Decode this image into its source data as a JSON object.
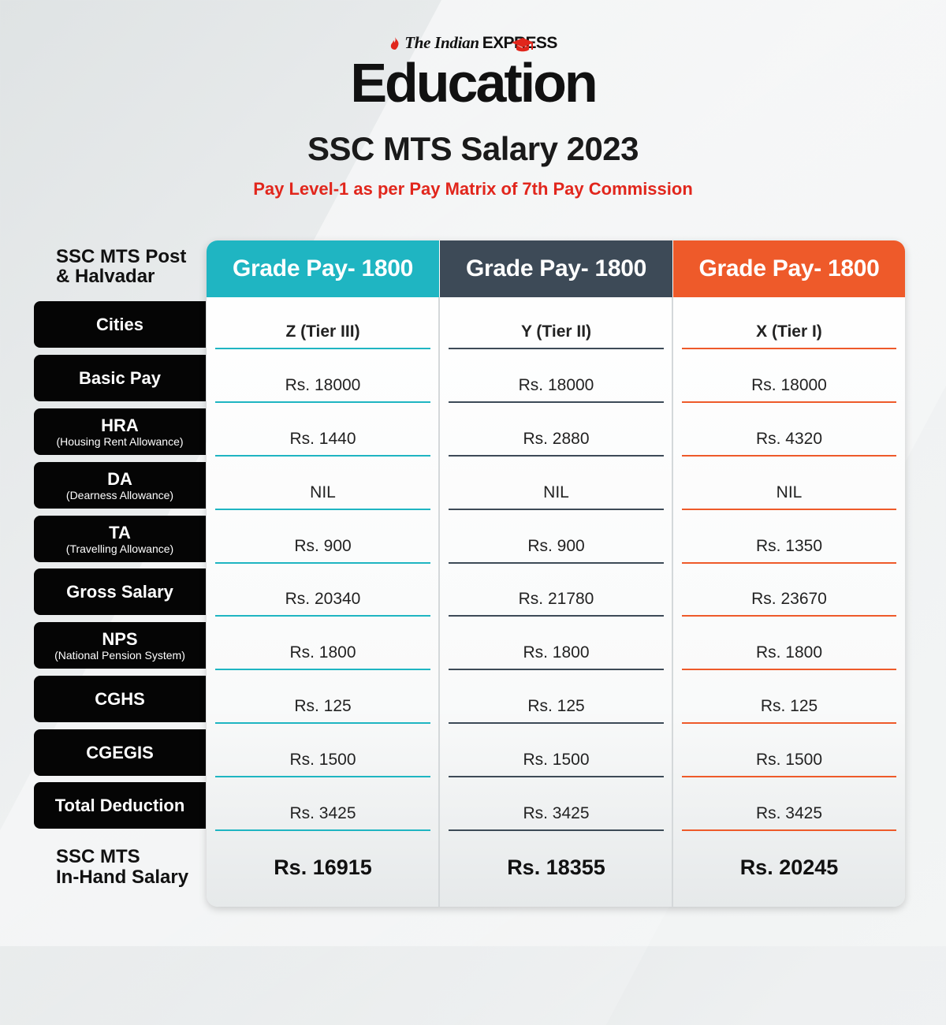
{
  "brand": {
    "publisher_prefix": "The Indian",
    "publisher_name": "EXPRESS",
    "product": "Education"
  },
  "header": {
    "title": "SSC MTS Salary 2023",
    "subtitle": "Pay Level-1 as per Pay Matrix of 7th Pay Commission"
  },
  "colors": {
    "teal": "#1fb5c2",
    "slate": "#3d4a57",
    "orange": "#ee5a2a",
    "red": "#e1261c"
  },
  "table": {
    "post_label_line1": "SSC MTS Post",
    "post_label_line2": "& Halvadar",
    "columns": [
      {
        "header": "Grade Pay- 1800",
        "city": "Z (Tier III)",
        "basic_pay": "Rs. 18000",
        "hra": "Rs. 1440",
        "da": "NIL",
        "ta": "Rs. 900",
        "gross": "Rs. 20340",
        "nps": "Rs. 1800",
        "cghs": "Rs. 125",
        "cgegis": "Rs. 1500",
        "total_deduction": "Rs. 3425",
        "in_hand": "Rs. 16915"
      },
      {
        "header": "Grade Pay- 1800",
        "city": "Y (Tier II)",
        "basic_pay": "Rs. 18000",
        "hra": "Rs. 2880",
        "da": "NIL",
        "ta": "Rs. 900",
        "gross": "Rs. 21780",
        "nps": "Rs. 1800",
        "cghs": "Rs. 125",
        "cgegis": "Rs. 1500",
        "total_deduction": "Rs. 3425",
        "in_hand": "Rs. 18355"
      },
      {
        "header": "Grade Pay- 1800",
        "city": "X (Tier I)",
        "basic_pay": "Rs. 18000",
        "hra": "Rs. 4320",
        "da": "NIL",
        "ta": "Rs. 1350",
        "gross": "Rs. 23670",
        "nps": "Rs. 1800",
        "cghs": "Rs. 125",
        "cgegis": "Rs. 1500",
        "total_deduction": "Rs. 3425",
        "in_hand": "Rs. 20245"
      }
    ],
    "row_labels": [
      {
        "main": "Cities",
        "sub": ""
      },
      {
        "main": "Basic Pay",
        "sub": ""
      },
      {
        "main": "HRA",
        "sub": "(Housing Rent Allowance)"
      },
      {
        "main": "DA",
        "sub": "(Dearness Allowance)"
      },
      {
        "main": "TA",
        "sub": "(Travelling Allowance)"
      },
      {
        "main": "Gross Salary",
        "sub": ""
      },
      {
        "main": "NPS",
        "sub": "(National Pension System)"
      },
      {
        "main": "CGHS",
        "sub": ""
      },
      {
        "main": "CGEGIS",
        "sub": ""
      },
      {
        "main": "Total Deduction",
        "sub": ""
      }
    ],
    "in_hand_label_line1": "SSC MTS",
    "in_hand_label_line2": "In-Hand Salary"
  }
}
